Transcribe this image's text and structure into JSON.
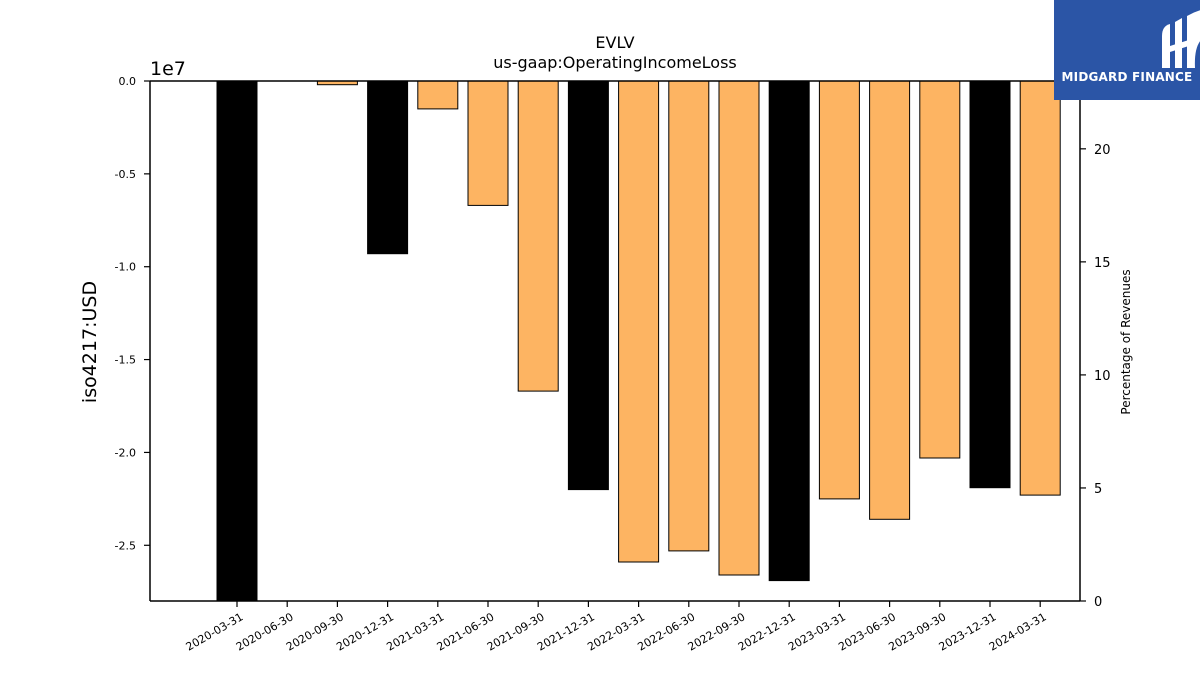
{
  "logo": {
    "text": "MIDGARD FINANCE",
    "icon": "midgard-mark-icon",
    "bg": "#2b55a6"
  },
  "chart_data": {
    "type": "bar",
    "title": "EVLV",
    "subtitle": "us-gaap:OperatingIncomeLoss",
    "ylabel": "iso4217:USD",
    "y2label": "Percentage of Revenues",
    "y_scale_label": "1e7",
    "ylim": [
      -2.8,
      0.0
    ],
    "y_ticks": [
      "0.0",
      "-0.5",
      "-1.0",
      "-1.5",
      "-2.0",
      "-2.5"
    ],
    "y2lim": [
      0,
      23
    ],
    "y2_ticks": [
      "0",
      "5",
      "10",
      "15",
      "20"
    ],
    "grid": false,
    "categories": [
      "2020-03-31",
      "2020-06-30",
      "2020-09-30",
      "2020-12-31",
      "2021-03-31",
      "2021-06-30",
      "2021-09-30",
      "2021-12-31",
      "2022-03-31",
      "2022-06-30",
      "2022-09-30",
      "2022-12-31",
      "2023-03-31",
      "2023-06-30",
      "2023-09-30",
      "2023-12-31",
      "2024-03-31"
    ],
    "values": [
      -2.8,
      null,
      -0.02,
      -0.93,
      -0.15,
      -0.67,
      -1.67,
      -2.2,
      -2.59,
      -2.53,
      -2.66,
      -2.69,
      -2.25,
      -2.36,
      -2.03,
      -2.19,
      -2.23
    ],
    "bar_colors": [
      "#000000",
      "#fdb462",
      "#fdb462",
      "#000000",
      "#fdb462",
      "#fdb462",
      "#fdb462",
      "#000000",
      "#fdb462",
      "#fdb462",
      "#fdb462",
      "#000000",
      "#fdb462",
      "#fdb462",
      "#fdb462",
      "#000000",
      "#fdb462"
    ],
    "colors": {
      "quarter": "#fdb462",
      "year_end": "#000000"
    }
  }
}
